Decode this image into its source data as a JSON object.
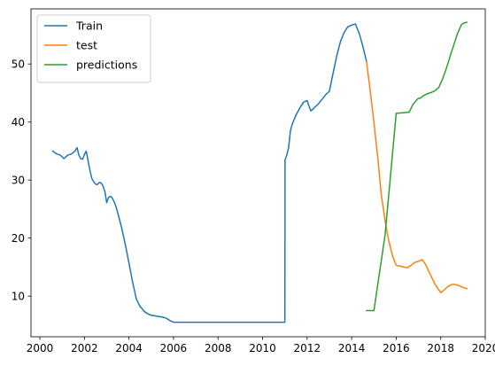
{
  "chart_data": {
    "type": "line",
    "title": "",
    "xlabel": "",
    "ylabel": "",
    "xlim": [
      1999.6,
      2020.0
    ],
    "ylim": [
      3.0,
      59.5
    ],
    "xticks": [
      2000,
      2002,
      2004,
      2006,
      2008,
      2010,
      2012,
      2014,
      2016,
      2018,
      2020
    ],
    "yticks": [
      10,
      20,
      30,
      40,
      50
    ],
    "grid": false,
    "legend_position": "top-left",
    "series": [
      {
        "name": "Train",
        "color": "#1f77b4",
        "x": [
          2000.58,
          2000.75,
          2000.92,
          2001.0,
          2001.08,
          2001.25,
          2001.42,
          2001.58,
          2001.67,
          2001.75,
          2001.83,
          2001.92,
          2002.0,
          2002.08,
          2002.17,
          2002.25,
          2002.33,
          2002.42,
          2002.5,
          2002.58,
          2002.67,
          2002.75,
          2002.83,
          2002.92,
          2003.0,
          2003.08,
          2003.17,
          2003.25,
          2003.33,
          2003.42,
          2003.5,
          2003.67,
          2003.83,
          2004.0,
          2004.17,
          2004.33,
          2004.5,
          2004.58,
          2004.67,
          2004.83,
          2005.0,
          2005.17,
          2005.33,
          2005.5,
          2005.67,
          2005.83,
          2006.0,
          2006.5,
          2007.0,
          2008.0,
          2009.0,
          2010.0,
          2010.5,
          2011.0,
          2011.01,
          2011.08,
          2011.17,
          2011.25,
          2011.33,
          2011.5,
          2011.67,
          2011.83,
          2012.0,
          2012.08,
          2012.17,
          2012.25,
          2012.33,
          2012.5,
          2012.67,
          2012.83,
          2013.0,
          2013.17,
          2013.33,
          2013.5,
          2013.67,
          2013.83,
          2014.0,
          2014.17,
          2014.25,
          2014.33,
          2014.5,
          2014.67
        ],
        "y": [
          35.0,
          34.5,
          34.3,
          34.0,
          33.7,
          34.3,
          34.5,
          35.0,
          35.6,
          34.3,
          33.7,
          33.6,
          34.4,
          35.0,
          33.2,
          31.6,
          30.3,
          29.7,
          29.3,
          29.2,
          29.6,
          29.5,
          29.0,
          28.0,
          26.1,
          27.0,
          27.2,
          26.9,
          26.3,
          25.4,
          24.3,
          21.8,
          19.0,
          15.7,
          12.3,
          9.5,
          8.2,
          7.9,
          7.4,
          7.0,
          6.7,
          6.6,
          6.5,
          6.4,
          6.2,
          5.8,
          5.5,
          5.5,
          5.5,
          5.5,
          5.5,
          5.5,
          5.5,
          5.5,
          33.5,
          34.2,
          35.6,
          38.5,
          39.6,
          41.2,
          42.4,
          43.4,
          43.7,
          42.8,
          41.9,
          42.2,
          42.5,
          43.1,
          43.9,
          44.7,
          45.3,
          48.5,
          51.4,
          53.9,
          55.5,
          56.4,
          56.7,
          56.9,
          56.1,
          55.4,
          53.1,
          50.4
        ]
      },
      {
        "name": "test",
        "color": "#ff7f0e",
        "x": [
          2014.67,
          2014.83,
          2015.0,
          2015.17,
          2015.33,
          2015.5,
          2015.67,
          2015.83,
          2016.0,
          2016.25,
          2016.5,
          2016.67,
          2016.83,
          2017.0,
          2017.17,
          2017.33,
          2017.5,
          2017.75,
          2018.0,
          2018.17,
          2018.33,
          2018.5,
          2018.67,
          2018.83,
          2019.0,
          2019.17
        ],
        "y": [
          50.4,
          45.5,
          40.0,
          34.0,
          27.5,
          23.0,
          19.5,
          17.0,
          15.3,
          15.1,
          14.9,
          15.3,
          15.8,
          16.0,
          16.3,
          15.4,
          14.0,
          12.0,
          10.6,
          11.1,
          11.7,
          12.0,
          12.0,
          11.8,
          11.5,
          11.3
        ]
      },
      {
        "name": "predictions",
        "color": "#2ca02c",
        "x": [
          2014.67,
          2015.0,
          2015.5,
          2016.0,
          2016.58,
          2016.75,
          2016.92,
          2017.0,
          2017.08,
          2017.25,
          2017.42,
          2017.58,
          2017.75,
          2017.92,
          2018.08,
          2018.25,
          2018.42,
          2018.58,
          2018.75,
          2018.92,
          2019.0,
          2019.17
        ],
        "y": [
          7.5,
          7.5,
          20.5,
          41.5,
          41.7,
          43.0,
          43.8,
          44.1,
          44.1,
          44.6,
          44.9,
          45.1,
          45.4,
          46.0,
          47.4,
          49.2,
          51.3,
          53.2,
          55.2,
          56.7,
          57.0,
          57.2
        ]
      }
    ]
  }
}
